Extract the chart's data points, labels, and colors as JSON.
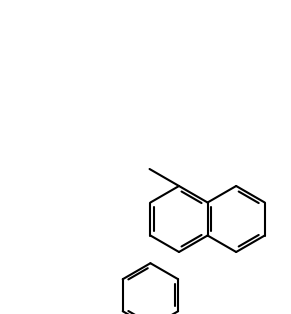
{
  "bg": "#ffffff",
  "lc": "#000000",
  "lw": 1.5,
  "fw": 2.91,
  "fh": 3.14,
  "dpi": 100
}
